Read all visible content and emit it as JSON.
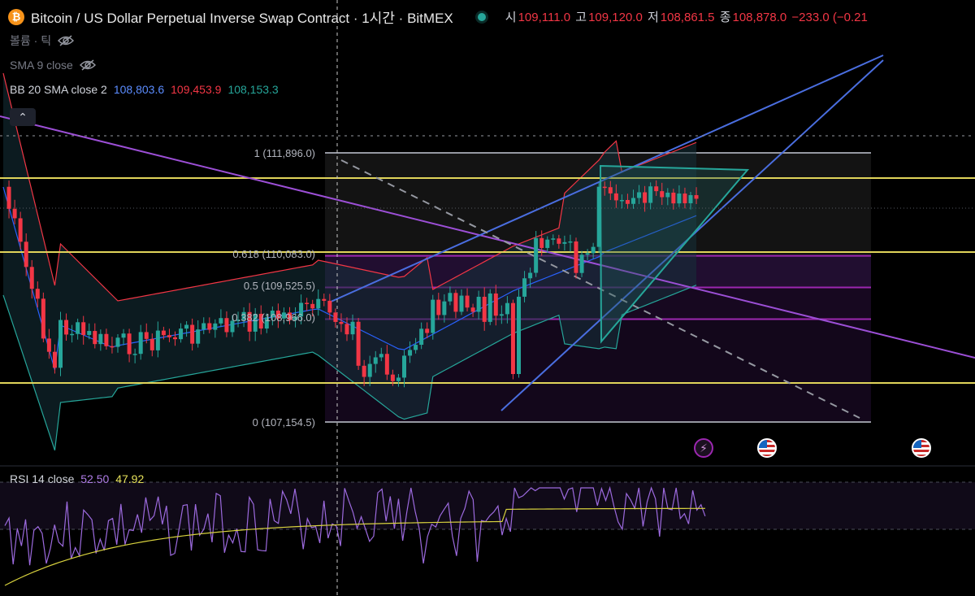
{
  "header": {
    "coin_glyph": "₿",
    "title": "Bitcoin / US Dollar Perpetual Inverse Swap Contract · 1시간 · BitMEX",
    "ohlc": {
      "open_label": "시",
      "open": "109,111.0",
      "high_label": "고",
      "high": "109,120.0",
      "low_label": "저",
      "low": "108,861.5",
      "close_label": "종",
      "close": "108,878.0",
      "change": "−233.0 (−0.21"
    }
  },
  "indicators": {
    "volume_label": "볼륨 · 틱",
    "sma_label": "SMA 9 close",
    "bb_label": "BB 20 SMA close 2",
    "bb_basis": "108,803.6",
    "bb_upper": "109,453.9",
    "bb_lower": "108,153.3",
    "collapse_glyph": "⌃"
  },
  "fibonacci": [
    {
      "label": "1 (111,896.0)",
      "level": 111896.0
    },
    {
      "label": "0.618 (110,083.0)",
      "level": 110083.0
    },
    {
      "label": "0.5 (109,525.5)",
      "level": 109525.5
    },
    {
      "label": "0.382 (108,966.0)",
      "level": 108966.0
    },
    {
      "label": "0 (107,154.5)",
      "level": 107154.5
    }
  ],
  "rsi": {
    "label": "RSI 14 close",
    "value": "52.50",
    "ma_value": "47.92"
  },
  "events": [
    {
      "type": "flash-icon",
      "glyph": "⚡"
    },
    {
      "type": "us-flag-icon"
    },
    {
      "type": "us-flag-icon"
    }
  ],
  "colors": {
    "up": "#26a69a",
    "down": "#f23645",
    "bb_upper": "#f23645",
    "bb_basis": "#2962ff",
    "bb_lower": "#26a69a",
    "horizontal": "#e0d45a",
    "fib_line": "#9c27b0",
    "trend_blue": "#4a6ee0",
    "trend_purple": "#9c4fd6",
    "rsi": "#9c6ade",
    "rsi_ma": "#d8d23e"
  }
}
